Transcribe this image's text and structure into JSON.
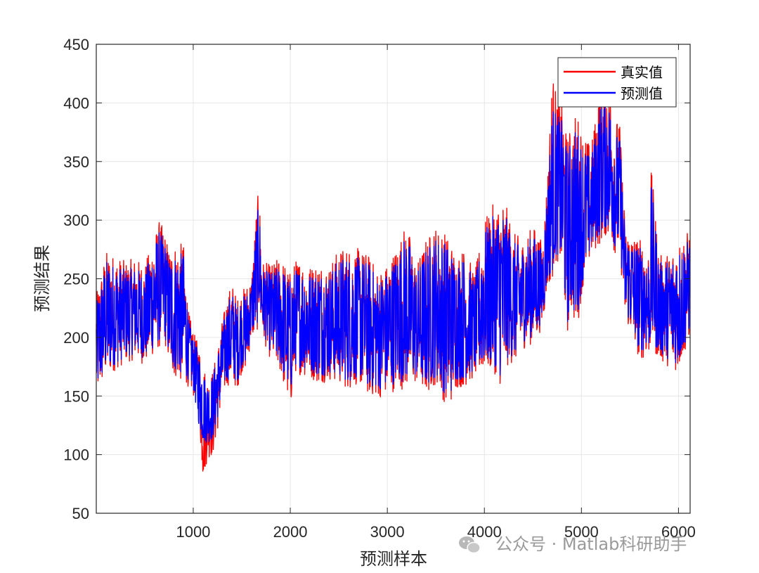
{
  "chart_data": {
    "type": "line",
    "title": "",
    "xlabel": "预测样本",
    "ylabel": "预测结果",
    "xlim": [
      1,
      6120
    ],
    "ylim": [
      50,
      450
    ],
    "xticks": [
      1000,
      2000,
      3000,
      4000,
      5000,
      6000
    ],
    "xtick_labels": [
      "1000",
      "2000",
      "3000",
      "4000",
      "5000",
      "6000"
    ],
    "yticks": [
      50,
      100,
      150,
      200,
      250,
      300,
      350,
      400,
      450
    ],
    "ytick_labels": [
      "50",
      "100",
      "150",
      "200",
      "250",
      "300",
      "350",
      "400",
      "450"
    ],
    "grid": true,
    "legend_position": "top-right",
    "n_samples": 6120,
    "series": [
      {
        "name": "真实值",
        "color": "#ff0000",
        "envelope": {
          "x": [
            1,
            100,
            200,
            300,
            400,
            500,
            600,
            650,
            700,
            750,
            800,
            900,
            950,
            1000,
            1050,
            1100,
            1150,
            1200,
            1250,
            1300,
            1350,
            1400,
            1450,
            1500,
            1550,
            1600,
            1650,
            1680,
            1700,
            1720,
            1800,
            1900,
            2000,
            2050,
            2100,
            2200,
            2300,
            2400,
            2500,
            2600,
            2700,
            2800,
            2900,
            3000,
            3100,
            3200,
            3300,
            3400,
            3500,
            3600,
            3650,
            3700,
            3800,
            3900,
            4000,
            4100,
            4200,
            4250,
            4300,
            4400,
            4500,
            4550,
            4600,
            4650,
            4700,
            4750,
            4800,
            4850,
            4900,
            4950,
            5000,
            5100,
            5200,
            5250,
            5300,
            5350,
            5400,
            5450,
            5500,
            5600,
            5700,
            5720,
            5800,
            5900,
            6000,
            6120
          ],
          "upper": [
            236,
            274,
            270,
            265,
            268,
            262,
            287,
            300,
            292,
            276,
            281,
            280,
            223,
            205,
            195,
            180,
            165,
            172,
            190,
            215,
            235,
            248,
            233,
            240,
            245,
            250,
            310,
            330,
            275,
            265,
            262,
            270,
            256,
            266,
            268,
            262,
            266,
            261,
            276,
            278,
            276,
            272,
            258,
            263,
            280,
            299,
            262,
            285,
            296,
            290,
            285,
            272,
            277,
            255,
            300,
            315,
            320,
            305,
            290,
            283,
            296,
            290,
            280,
            340,
            428,
            405,
            400,
            372,
            382,
            395,
            378,
            363,
            420,
            430,
            413,
            390,
            380,
            295,
            290,
            285,
            275,
            345,
            270,
            272,
            283,
            292
          ],
          "lower": [
            148,
            165,
            172,
            178,
            181,
            176,
            186,
            190,
            198,
            175,
            165,
            160,
            158,
            150,
            140,
            78,
            97,
            98,
            120,
            148,
            158,
            162,
            155,
            170,
            173,
            200,
            198,
            220,
            205,
            198,
            180,
            168,
            137,
            170,
            168,
            165,
            160,
            163,
            160,
            155,
            160,
            150,
            148,
            150,
            156,
            155,
            160,
            150,
            160,
            142,
            142,
            155,
            158,
            165,
            170,
            170,
            152,
            180,
            175,
            190,
            195,
            200,
            210,
            240,
            250,
            265,
            255,
            200,
            222,
            200,
            236,
            268,
            280,
            285,
            282,
            270,
            265,
            215,
            205,
            180,
            185,
            190,
            180,
            175,
            170,
            200
          ]
        }
      },
      {
        "name": "预测值",
        "color": "#0000ff",
        "envelope": {
          "x": [
            1,
            100,
            200,
            300,
            400,
            500,
            600,
            650,
            700,
            750,
            800,
            900,
            950,
            1000,
            1050,
            1100,
            1150,
            1200,
            1250,
            1300,
            1350,
            1400,
            1450,
            1500,
            1550,
            1600,
            1650,
            1680,
            1700,
            1720,
            1800,
            1900,
            2000,
            2050,
            2100,
            2200,
            2300,
            2400,
            2500,
            2600,
            2700,
            2800,
            2900,
            3000,
            3100,
            3200,
            3300,
            3400,
            3500,
            3600,
            3650,
            3700,
            3800,
            3900,
            4000,
            4100,
            4200,
            4250,
            4300,
            4400,
            4500,
            4550,
            4600,
            4650,
            4700,
            4750,
            4800,
            4850,
            4900,
            4950,
            5000,
            5100,
            5200,
            5250,
            5300,
            5350,
            5400,
            5450,
            5500,
            5600,
            5700,
            5720,
            5800,
            5900,
            6000,
            6120
          ],
          "upper": [
            228,
            266,
            262,
            258,
            260,
            255,
            280,
            291,
            284,
            268,
            272,
            272,
            216,
            199,
            190,
            172,
            160,
            168,
            185,
            208,
            228,
            240,
            227,
            234,
            238,
            244,
            298,
            318,
            268,
            258,
            255,
            262,
            249,
            258,
            260,
            255,
            258,
            254,
            268,
            270,
            268,
            265,
            251,
            256,
            271,
            290,
            255,
            276,
            287,
            282,
            277,
            265,
            269,
            248,
            291,
            305,
            310,
            296,
            282,
            276,
            288,
            282,
            273,
            328,
            400,
            390,
            385,
            362,
            370,
            382,
            366,
            353,
            402,
            405,
            398,
            378,
            368,
            288,
            283,
            278,
            268,
            332,
            264,
            266,
            276,
            284
          ],
          "lower": [
            152,
            170,
            177,
            183,
            186,
            181,
            191,
            196,
            203,
            181,
            171,
            166,
            164,
            156,
            128,
            110,
            110,
            112,
            130,
            154,
            163,
            167,
            160,
            176,
            178,
            205,
            204,
            226,
            210,
            204,
            186,
            174,
            150,
            176,
            174,
            171,
            166,
            169,
            166,
            161,
            166,
            157,
            155,
            157,
            162,
            162,
            166,
            157,
            166,
            150,
            150,
            162,
            164,
            171,
            176,
            176,
            160,
            186,
            181,
            196,
            201,
            206,
            216,
            246,
            256,
            271,
            261,
            208,
            228,
            208,
            242,
            274,
            288,
            292,
            288,
            276,
            271,
            221,
            211,
            187,
            191,
            196,
            186,
            181,
            176,
            206
          ]
        }
      }
    ]
  },
  "watermark": {
    "text": "公众号 · Matlab科研助手",
    "icon": "wechat-icon"
  }
}
